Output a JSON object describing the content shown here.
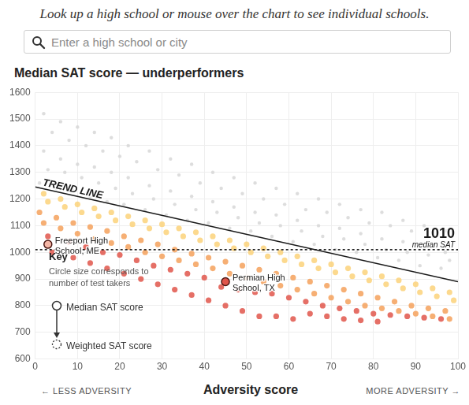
{
  "header": {
    "instruction": "Look up a high school or mouse over the chart to see individual schools.",
    "search_placeholder": "Enter a high school or city"
  },
  "chart_data": {
    "type": "scatter",
    "title": "Median SAT score — underperformers",
    "xlabel": "Adversity score",
    "x_hints": {
      "left": "← LESS ADVERSITY",
      "right": "MORE ADVERSITY →"
    },
    "xlim": [
      0,
      100
    ],
    "xticks": [
      0,
      10,
      20,
      30,
      40,
      50,
      60,
      70,
      80,
      90,
      100
    ],
    "ylim": [
      600,
      1600
    ],
    "yticks": [
      600,
      700,
      800,
      900,
      1000,
      1100,
      1200,
      1300,
      1400,
      1500,
      1600
    ],
    "grid": true,
    "key": {
      "title": "Key",
      "note": "Circle size corresponds to number of test takers",
      "items": [
        "Median SAT score",
        "Weighted SAT score"
      ]
    },
    "series": [
      {
        "type": "scatter",
        "marker": "circle",
        "color": "#d4d4d4",
        "x": [
          1,
          3,
          2,
          4,
          2,
          5,
          7,
          6,
          8,
          6,
          9,
          11,
          10,
          12,
          10,
          13,
          15,
          14,
          16,
          14,
          17,
          19,
          18,
          20,
          18,
          21,
          23,
          22,
          24,
          22,
          26,
          28,
          27,
          29,
          27,
          31,
          33,
          32,
          34,
          32,
          36,
          38,
          37,
          39,
          37,
          41,
          43,
          42,
          44,
          42,
          46,
          48,
          47,
          49,
          47,
          51,
          53,
          52,
          54,
          52,
          56,
          58,
          57,
          59,
          57,
          61,
          63,
          62,
          64,
          62,
          66,
          68,
          67,
          69,
          67,
          71,
          73,
          72,
          74,
          72,
          76,
          78,
          77,
          79,
          77,
          81,
          83,
          82,
          84,
          82,
          86,
          88,
          87,
          89,
          87,
          91,
          93,
          92,
          94,
          92,
          96,
          98,
          97,
          99,
          97
        ],
        "values": [
          1260,
          1310,
          1380,
          1450,
          1520,
          1240,
          1300,
          1350,
          1420,
          1490,
          1230,
          1280,
          1330,
          1400,
          1470,
          1210,
          1260,
          1320,
          1380,
          1450,
          1190,
          1240,
          1300,
          1360,
          1430,
          1180,
          1220,
          1280,
          1340,
          1400,
          1160,
          1200,
          1250,
          1310,
          1380,
          1140,
          1180,
          1230,
          1290,
          1350,
          1120,
          1160,
          1210,
          1260,
          1330,
          1110,
          1150,
          1190,
          1240,
          1300,
          1090,
          1130,
          1170,
          1220,
          1280,
          1080,
          1110,
          1150,
          1200,
          1260,
          1060,
          1100,
          1140,
          1180,
          1240,
          1040,
          1080,
          1120,
          1160,
          1220,
          1030,
          1060,
          1100,
          1150,
          1200,
          1010,
          1050,
          1090,
          1130,
          1180,
          1000,
          1030,
          1070,
          1110,
          1160,
          980,
          1010,
          1050,
          1100,
          1150,
          970,
          1000,
          1040,
          1080,
          1120,
          950,
          990,
          1020,
          1060,
          1100,
          940,
          970,
          1000,
          1040,
          1080
        ]
      },
      {
        "type": "scatter",
        "marker": "circle",
        "color": "#fbd27a",
        "x": [
          2,
          3,
          6,
          7,
          10,
          11,
          14,
          15,
          18,
          19,
          22,
          23,
          26,
          27,
          30,
          31,
          34,
          35,
          38,
          39,
          42,
          43,
          46,
          47,
          50,
          51,
          54,
          55,
          58,
          59,
          62,
          63,
          66,
          67,
          70,
          71,
          74,
          75,
          78,
          79,
          82,
          83,
          86,
          87,
          90,
          91,
          94,
          95,
          98,
          99
        ],
        "values": [
          1220,
          1190,
          1200,
          1170,
          1180,
          1150,
          1165,
          1135,
          1150,
          1120,
          1135,
          1105,
          1120,
          1090,
          1105,
          1075,
          1090,
          1060,
          1075,
          1045,
          1060,
          1030,
          1045,
          1015,
          1030,
          1000,
          1015,
          985,
          1000,
          970,
          985,
          955,
          970,
          940,
          955,
          925,
          940,
          910,
          925,
          895,
          910,
          880,
          895,
          865,
          880,
          850,
          865,
          835,
          850,
          820
        ]
      },
      {
        "type": "scatter",
        "marker": "circle",
        "color": "#f4a15c",
        "x": [
          1,
          2,
          5,
          6,
          9,
          10,
          13,
          14,
          17,
          18,
          21,
          22,
          25,
          26,
          29,
          30,
          33,
          34,
          37,
          38,
          41,
          42,
          45,
          46,
          49,
          50,
          53,
          54,
          57,
          58,
          61,
          62,
          65,
          66,
          69,
          70,
          73,
          74,
          77,
          78,
          81,
          82,
          85,
          86,
          89,
          90,
          93,
          94,
          97,
          98
        ],
        "values": [
          1150,
          1110,
          1130,
          1090,
          1110,
          1070,
          1095,
          1050,
          1080,
          1035,
          1060,
          1020,
          1045,
          1000,
          1030,
          985,
          1010,
          970,
          995,
          955,
          980,
          940,
          965,
          920,
          950,
          905,
          935,
          890,
          920,
          875,
          905,
          860,
          890,
          845,
          875,
          830,
          860,
          815,
          845,
          800,
          830,
          790,
          815,
          780,
          800,
          770,
          790,
          760,
          780,
          750
        ]
      },
      {
        "type": "scatter",
        "marker": "circle",
        "color": "#e0564b",
        "x": [
          3,
          4,
          8,
          9,
          12,
          13,
          16,
          17,
          20,
          21,
          24,
          25,
          28,
          29,
          32,
          33,
          36,
          37,
          40,
          41,
          44,
          45,
          48,
          49,
          52,
          53,
          56,
          57,
          60,
          61,
          64,
          65,
          68,
          69,
          72,
          73,
          76,
          77,
          80,
          81,
          84,
          88,
          92,
          96
        ],
        "values": [
          1060,
          1000,
          1040,
          980,
          1020,
          960,
          1000,
          940,
          990,
          920,
          970,
          900,
          950,
          880,
          935,
          860,
          920,
          840,
          905,
          820,
          870,
          800,
          860,
          780,
          850,
          760,
          845,
          760,
          830,
          750,
          815,
          770,
          800,
          760,
          790,
          750,
          780,
          745,
          770,
          740,
          765,
          760,
          755,
          750
        ]
      },
      {
        "name": "TREND LINE",
        "type": "line",
        "line_style": "solid",
        "color": "#1a1a1a",
        "x": [
          0,
          100
        ],
        "values": [
          1245,
          890
        ]
      },
      {
        "name": "median SAT",
        "type": "line",
        "line_style": "dashed",
        "color": "#1a1a1a",
        "x": [
          0,
          100
        ],
        "values": [
          1010,
          1010
        ]
      },
      {
        "name": "Freeport High School, ME",
        "type": "scatter",
        "marker": "circle",
        "color": "#f4b6a6",
        "x": [
          3
        ],
        "values": [
          1030
        ]
      },
      {
        "name": "Permian High School, TX",
        "type": "scatter",
        "marker": "circle",
        "color": "#e0554a",
        "x": [
          45
        ],
        "values": [
          890
        ]
      }
    ]
  }
}
